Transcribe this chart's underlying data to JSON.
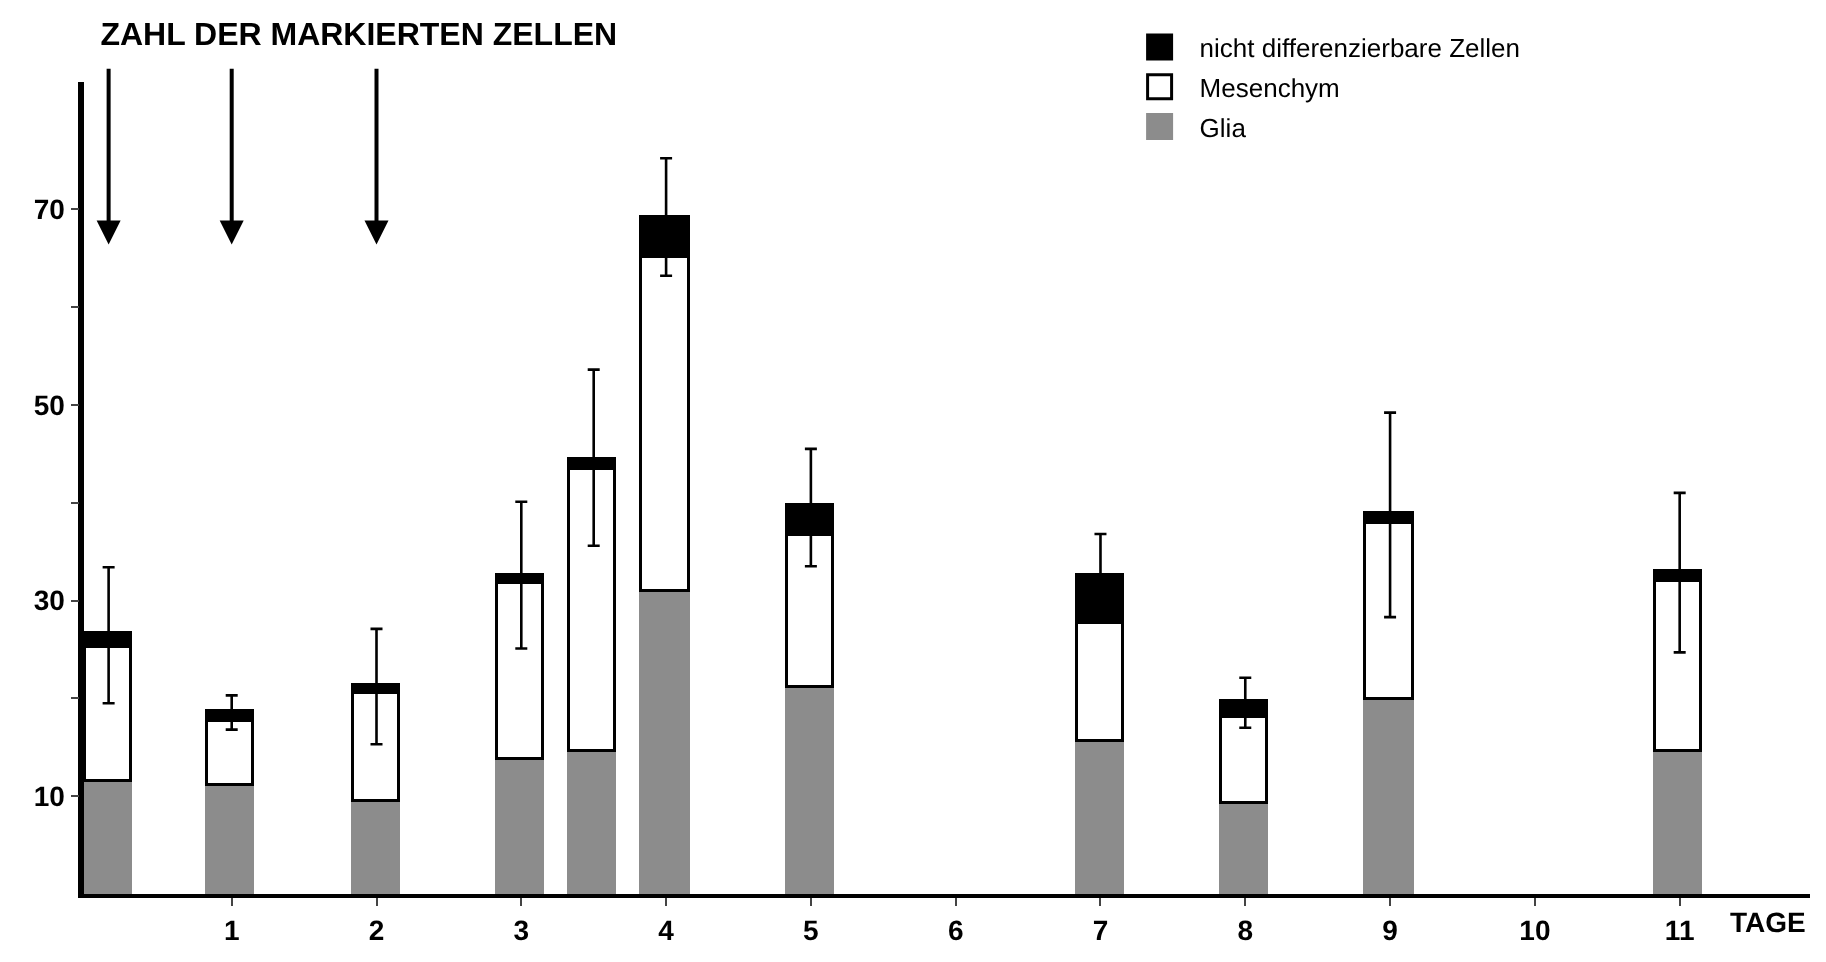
{
  "chart_data": {
    "type": "bar",
    "title": "ZAHL DER MARKIERTEN ZELLEN",
    "xlabel": "TAGE",
    "stacked": true,
    "x": [
      0.15,
      1,
      2,
      3,
      3.5,
      4,
      5,
      7,
      8,
      9,
      11
    ],
    "series": [
      {
        "name": "Glia",
        "color": "#8c8c8c",
        "values": [
          11.5,
          11.0,
          9.5,
          13.8,
          14.6,
          30.8,
          21.1,
          15.5,
          9.3,
          19.9,
          14.6
        ]
      },
      {
        "name": "Mesenchym",
        "color": "#ffffff",
        "values": [
          13.6,
          6.5,
          11.0,
          17.9,
          28.8,
          34.2,
          15.5,
          12.1,
          8.6,
          18.0,
          17.3
        ]
      },
      {
        "name": "nicht differenzierbare Zellen",
        "color": "#000000",
        "values": [
          1.4,
          1.1,
          0.8,
          0.8,
          0.9,
          4.0,
          3.0,
          4.9,
          1.7,
          0.9,
          1.0
        ],
        "errors": [
          [
            19.5,
            33.4
          ],
          [
            16.8,
            20.3
          ],
          [
            15.3,
            27.1
          ],
          [
            25.1,
            40.1
          ],
          [
            35.6,
            53.6
          ],
          [
            63.2,
            75.2
          ],
          [
            33.5,
            45.5
          ],
          [
            32.5,
            36.8
          ],
          [
            17.0,
            22.1
          ],
          [
            28.3,
            49.2
          ],
          [
            24.7,
            41.0
          ]
        ]
      }
    ],
    "xlim": [
      -0.02,
      11.9
    ],
    "xticks": [
      1,
      2,
      3,
      4,
      5,
      6,
      7,
      8,
      9,
      10,
      11
    ],
    "ylim": [
      0,
      83
    ],
    "yticks": [
      10,
      {
        "value": 20,
        "label": null
      },
      30,
      {
        "value": 40,
        "label": null
      },
      50,
      {
        "value": 60,
        "label": null
      },
      70
    ],
    "legend": "top right"
  }
}
